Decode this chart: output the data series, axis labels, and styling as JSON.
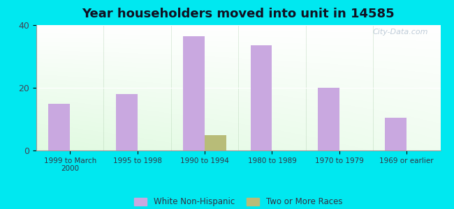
{
  "title": "Year householders moved into unit in 14585",
  "categories": [
    "1999 to March\n2000",
    "1995 to 1998",
    "1990 to 1994",
    "1980 to 1989",
    "1970 to 1979",
    "1969 or earlier"
  ],
  "white_values": [
    15.0,
    18.0,
    36.5,
    33.5,
    20.0,
    10.5
  ],
  "other_values": [
    0,
    0,
    5.0,
    0,
    0,
    0
  ],
  "white_color": "#c9a8e0",
  "other_color": "#b8bc78",
  "bg_outer": "#00e8f0",
  "ylim": [
    0,
    40
  ],
  "yticks": [
    0,
    20,
    40
  ],
  "bar_width": 0.32,
  "title_fontsize": 13,
  "watermark": "City-Data.com",
  "legend_labels": [
    "White Non-Hispanic",
    "Two or More Races"
  ]
}
